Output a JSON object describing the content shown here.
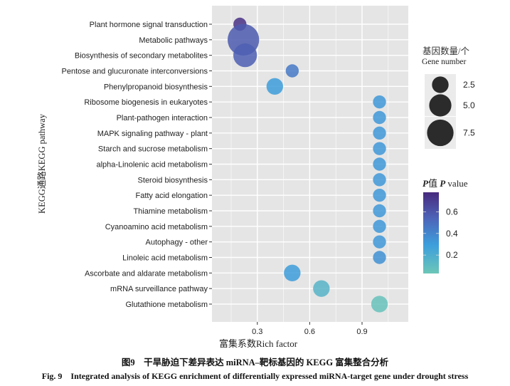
{
  "chart_data": {
    "type": "scatter",
    "xlabel": "富集系数Rich factor",
    "ylabel": "KEGG通路KEGG pathway",
    "xlim": [
      0.04,
      1.165
    ],
    "x_ticks": [
      0.3,
      0.6,
      0.9
    ],
    "x_tick_labels": [
      "0.3",
      "0.6",
      "0.9"
    ],
    "grid": true,
    "categories": [
      "Plant hormone signal transduction",
      "Metabolic pathways",
      "Biosynthesis of secondary metabolites",
      "Pentose and glucuronate interconversions",
      "Phenylpropanoid biosynthesis",
      "Ribosome biogenesis in eukaryotes",
      "Plant-pathogen interaction",
      "MAPK signaling pathway - plant",
      "Starch and sucrose metabolism",
      "alpha-Linolenic acid metabolism",
      "Steroid biosynthesis",
      "Fatty acid elongation",
      "Thiamine metabolism",
      "Cyanoamino acid metabolism",
      "Autophagy - other",
      "Linoleic acid metabolism",
      "Ascorbate and aldarate metabolism",
      "mRNA surveillance pathway",
      "Glutathione metabolism"
    ],
    "rich_factor": [
      0.2,
      0.22,
      0.23,
      0.5,
      0.4,
      1.0,
      1.0,
      1.0,
      1.0,
      1.0,
      1.0,
      1.0,
      1.0,
      1.0,
      1.0,
      1.0,
      0.5,
      0.667,
      1.0
    ],
    "gene_number": [
      1,
      10,
      5,
      1,
      2,
      1,
      1,
      1,
      1,
      1,
      1,
      1,
      1,
      1,
      1,
      1,
      2,
      2,
      2
    ],
    "p_value": [
      0.75,
      0.58,
      0.56,
      0.45,
      0.3,
      0.32,
      0.32,
      0.32,
      0.32,
      0.32,
      0.32,
      0.32,
      0.32,
      0.32,
      0.32,
      0.35,
      0.3,
      0.15,
      0.06
    ],
    "size_legend": {
      "title_cn": "基因数量/个",
      "title_en": "Gene number",
      "values": [
        2.5,
        5.0,
        7.5
      ],
      "labels": [
        "2.5",
        "5.0",
        "7.5"
      ]
    },
    "color_legend": {
      "title_p1": "P",
      "title_cn": "值 ",
      "title_p2": "P",
      "title_en": " value",
      "range": [
        0.03,
        0.78
      ],
      "ticks": [
        0.2,
        0.4,
        0.6
      ],
      "tick_labels": [
        "0.2",
        "0.4",
        "0.6"
      ],
      "colors": [
        "#6cc6b8",
        "#3d9fdc",
        "#4d64b8",
        "#482a7e"
      ]
    }
  },
  "caption": {
    "cn": "图9　干旱胁迫下差异表达 miRNA–靶标基因的 KEGG 富集整合分析",
    "en": "Fig. 9　Integrated analysis of KEGG enrichment of differentially expressed miRNA-target gene under drought stress"
  }
}
